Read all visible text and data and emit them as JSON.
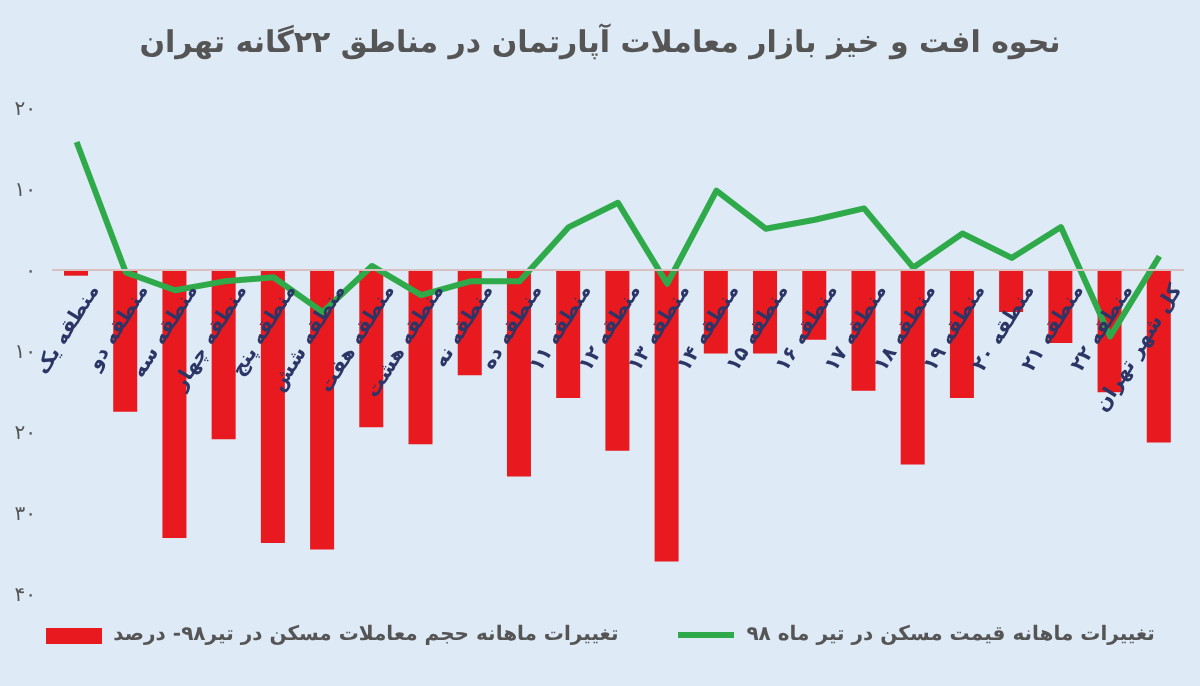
{
  "chart_data": {
    "type": "bar",
    "title": "نحوه افت و خیز بازار معاملات آپارتمان در مناطق ۲۲گانه تهران",
    "categories": [
      "منطقه یک",
      "منطقه دو",
      "منطقه سه",
      "منطقه چهار",
      "منطقه پنج",
      "منطقه شش",
      "منطقه هفت",
      "منطقه هشت",
      "منطقه نه",
      "منطقه ده",
      "منطقه ۱۱",
      "منطقه ۱۲",
      "منطقه ۱۳",
      "منطقه ۱۴",
      "منطقه ۱۵",
      "منطقه ۱۶",
      "منطقه ۱۷",
      "منطقه ۱۸",
      "منطقه ۱۹",
      "منطقه ۲۰",
      "منطقه ۲۱",
      "منطقه ۲۲",
      "کل شهر تهران"
    ],
    "series": [
      {
        "name": "تغییرات ماهانه قیمت مسکن در تیر ماه ۹۸",
        "type": "line",
        "color": "#2eaa4a",
        "values": [
          15.8,
          -0.3,
          -2.5,
          -1.4,
          -0.9,
          -5.2,
          0.5,
          -3.1,
          -1.4,
          -1.4,
          5.3,
          8.3,
          -1.7,
          9.8,
          5.1,
          6.2,
          7.6,
          0.3,
          4.5,
          1.5,
          5.3,
          -8.2,
          1.7
        ]
      },
      {
        "name": "تغییرات ماهانه حجم معاملات مسکن در تیر۹۸- درصد",
        "color": "#e8191f",
        "values": [
          -0.7,
          -17.5,
          -33.1,
          -20.9,
          -33.7,
          -34.5,
          -19.4,
          -21.5,
          -13.0,
          -25.5,
          -15.8,
          -22.3,
          -36.0,
          -10.3,
          -10.3,
          -8.6,
          -14.9,
          -24.0,
          -15.8,
          -5.2,
          -9.0,
          -15.1,
          -21.3
        ]
      }
    ],
    "ylim": [
      -40,
      20
    ],
    "yticks": [
      {
        "value": -40,
        "label": "۴۰"
      },
      {
        "value": -30,
        "label": "۳۰"
      },
      {
        "value": -20,
        "label": "۲۰"
      },
      {
        "value": -10,
        "label": "۱۰"
      },
      {
        "value": 0,
        "label": "۰"
      },
      {
        "value": 10,
        "label": "۱۰"
      },
      {
        "value": 20,
        "label": "۲۰"
      }
    ],
    "legend": "bottom",
    "grid": false,
    "marker": "none",
    "line_style": "solid"
  }
}
